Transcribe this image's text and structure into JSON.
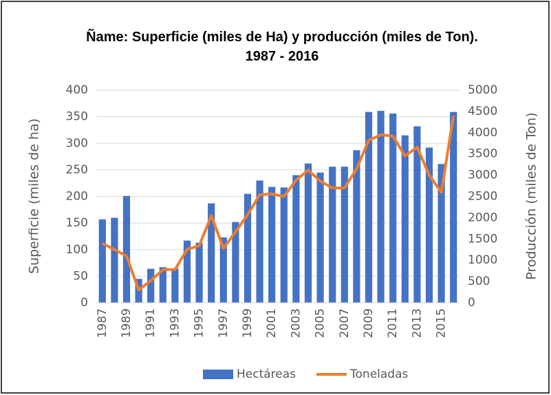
{
  "chart_data": {
    "type": "bar-line",
    "title": "Ñame: Superficie (miles de Ha) y producción (miles de Ton). 1987 - 2016",
    "y_label": "Superficie  (miles de ha)",
    "y2_label": "Producción (miles de Ton)",
    "categories": [
      "1987",
      null,
      "1989",
      null,
      "1991",
      null,
      "1993",
      null,
      "1995",
      null,
      "1997",
      null,
      "1999",
      null,
      "2001",
      null,
      "2003",
      null,
      "2005",
      null,
      "2007",
      null,
      "2009",
      null,
      "2011",
      null,
      "2013",
      null,
      "2015",
      null
    ],
    "series": [
      {
        "name": "Hectáreas",
        "type": "bar",
        "color": "#4472c4",
        "axis": "y",
        "values": [
          157,
          160,
          201,
          45,
          64,
          67,
          65,
          117,
          113,
          187,
          123,
          152,
          205,
          230,
          218,
          217,
          240,
          262,
          245,
          256,
          256,
          287,
          359,
          361,
          356,
          315,
          332,
          292,
          261,
          359
        ]
      },
      {
        "name": "Toneladas",
        "type": "line",
        "color": "#ed7d31",
        "axis": "y2",
        "values": [
          1400,
          1250,
          1100,
          300,
          520,
          780,
          780,
          1260,
          1340,
          2050,
          1280,
          1670,
          2070,
          2540,
          2560,
          2500,
          2880,
          3120,
          2860,
          2700,
          2700,
          3150,
          3820,
          3950,
          3920,
          3450,
          3660,
          3000,
          2600,
          4400
        ]
      }
    ],
    "ylim": [
      0,
      400
    ],
    "yticks": [
      0,
      50,
      100,
      150,
      200,
      250,
      300,
      350,
      400
    ],
    "y2lim": [
      0,
      5000
    ],
    "y2ticks": [
      0,
      500,
      1000,
      1500,
      2000,
      2500,
      3000,
      3500,
      4000,
      4500,
      5000
    ],
    "grid": true,
    "legend": "bottom"
  }
}
